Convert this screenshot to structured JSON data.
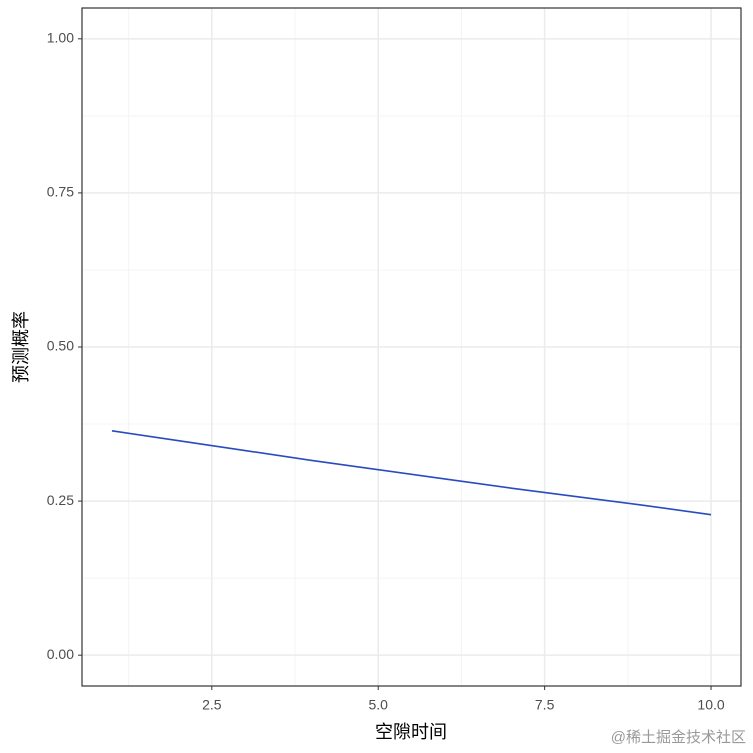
{
  "chart_data": {
    "type": "line",
    "x_label": "空隙时间",
    "y_label": "预测概率",
    "watermark": "@稀土掘金技术社区",
    "x": [
      1,
      2,
      3,
      4,
      5,
      6,
      7,
      8,
      9,
      10
    ],
    "series": [
      {
        "name": "预测概率",
        "color": "#2a4bc0",
        "values": [
          0.364,
          0.348,
          0.332,
          0.316,
          0.301,
          0.286,
          0.271,
          0.257,
          0.243,
          0.228
        ]
      }
    ],
    "xlim": [
      0.55,
      10.45
    ],
    "ylim": [
      -0.05,
      1.05
    ],
    "xticks": [
      {
        "value": 2.5,
        "label": "2.5"
      },
      {
        "value": 5,
        "label": "5.0"
      },
      {
        "value": 7.5,
        "label": "7.5"
      },
      {
        "value": 10,
        "label": "10.0"
      }
    ],
    "yticks": [
      {
        "value": 0,
        "label": "0.00"
      },
      {
        "value": 0.25,
        "label": "0.25"
      },
      {
        "value": 0.5,
        "label": "0.50"
      },
      {
        "value": 0.75,
        "label": "0.75"
      },
      {
        "value": 1,
        "label": "1.00"
      }
    ],
    "xminor": [
      1.25,
      3.75,
      6.25,
      8.75
    ],
    "yminor": [
      0.125,
      0.375,
      0.625,
      0.875
    ],
    "grid": true
  }
}
